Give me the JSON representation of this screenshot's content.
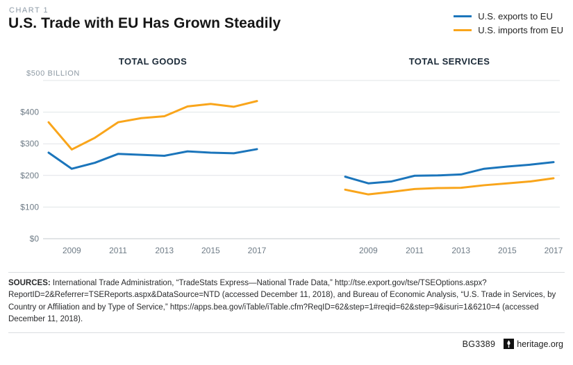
{
  "header": {
    "kicker": "CHART 1",
    "title": "U.S. Trade with EU Has Grown Steadily"
  },
  "legend": [
    {
      "label": "U.S. exports to EU"
    },
    {
      "label": "U.S. imports from EU"
    }
  ],
  "axis": {
    "prefix": "$",
    "top_label": "$500 BILLION"
  },
  "chart_data": [
    {
      "type": "line",
      "title": "TOTAL GOODS",
      "x": [
        2008,
        2009,
        2010,
        2011,
        2012,
        2013,
        2014,
        2015,
        2016,
        2017
      ],
      "xticks": [
        2009,
        2011,
        2013,
        2015,
        2017
      ],
      "ylim": [
        0,
        500
      ],
      "yticks": [
        0,
        100,
        200,
        300,
        400,
        500
      ],
      "ylabel": "$ billion",
      "grid": true,
      "series": [
        {
          "name": "U.S. exports to EU",
          "color": "#1b75bb",
          "values": [
            272,
            221,
            240,
            268,
            265,
            262,
            276,
            272,
            270,
            283
          ]
        },
        {
          "name": "U.S. imports from EU",
          "color": "#f9a51b",
          "values": [
            368,
            282,
            319,
            368,
            381,
            387,
            418,
            426,
            417,
            435
          ]
        }
      ]
    },
    {
      "type": "line",
      "title": "TOTAL SERVICES",
      "x": [
        2008,
        2009,
        2010,
        2011,
        2012,
        2013,
        2014,
        2015,
        2016,
        2017
      ],
      "xticks": [
        2009,
        2011,
        2013,
        2015,
        2017
      ],
      "ylim": [
        0,
        500
      ],
      "yticks": [
        0,
        100,
        200,
        300,
        400,
        500
      ],
      "ylabel": "$ billion",
      "grid": true,
      "series": [
        {
          "name": "U.S. exports to EU",
          "color": "#1b75bb",
          "values": [
            196,
            175,
            181,
            199,
            200,
            203,
            221,
            228,
            234,
            242
          ]
        },
        {
          "name": "U.S. imports from EU",
          "color": "#f9a51b",
          "values": [
            155,
            140,
            148,
            157,
            160,
            161,
            169,
            175,
            181,
            191
          ]
        }
      ]
    }
  ],
  "sources": {
    "label": "SOURCES:",
    "text": "International Trade Administration, “TradeStats Express—National Trade Data,” http://tse.export.gov/tse/TSEOptions.aspx?ReportID=2&Referrer=TSEReports.aspx&DataSource=NTD (accessed December 11, 2018), and Bureau of Economic Analysis, “U.S. Trade in Services, by Country or Affiliation and by Type of Service,” https://apps.bea.gov/iTable/iTable.cfm?ReqID=62&step=1#reqid=62&step=9&isuri=1&6210=4 (accessed December 11, 2018)."
  },
  "footer": {
    "id": "BG3389",
    "site": "heritage.org"
  }
}
